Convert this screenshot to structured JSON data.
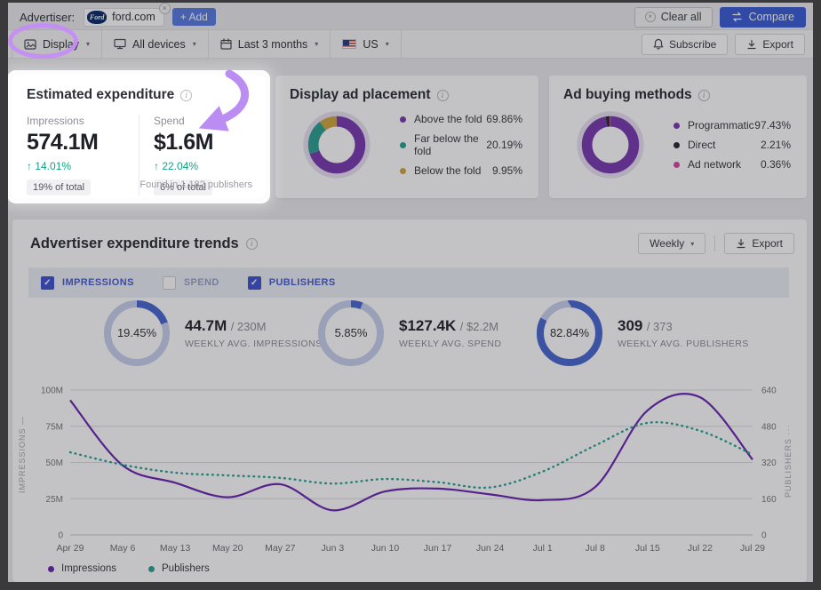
{
  "advertiser_bar": {
    "label": "Advertiser:",
    "chip": {
      "name": "ford.com",
      "logo_text": "Ford"
    },
    "add_button": "+ Add",
    "clear_all": "Clear all",
    "compare": "Compare"
  },
  "filter_bar": {
    "filters": [
      {
        "icon": "display-icon",
        "label": "Display"
      },
      {
        "icon": "devices-icon",
        "label": "All devices"
      },
      {
        "icon": "calendar-icon",
        "label": "Last 3 months"
      },
      {
        "icon": "us-flag-icon",
        "label": "US"
      }
    ],
    "subscribe": "Subscribe",
    "export": "Export"
  },
  "cards": {
    "expenditure": {
      "title": "Estimated expenditure",
      "metrics": [
        {
          "label": "Impressions",
          "value": "574.1M",
          "change": "↑ 14.01%",
          "share": "19% of total"
        },
        {
          "label": "Spend",
          "value": "$1.6M",
          "change": "↑ 22.04%",
          "share": "6% of total"
        }
      ],
      "footnote": "Found in 1,182 publishers"
    }
  },
  "trends": {
    "title": "Advertiser expenditure trends",
    "frequency": "Weekly",
    "export_label": "Export",
    "toggles": [
      {
        "label": "IMPRESSIONS",
        "checked": true
      },
      {
        "label": "SPEND",
        "checked": false
      },
      {
        "label": "PUBLISHERS",
        "checked": true
      }
    ],
    "gauges": [
      {
        "percent": "19.45%",
        "value": 19.45,
        "main": "44.7M",
        "total": "/ 230M",
        "caption": "WEEKLY AVG. IMPRESSIONS"
      },
      {
        "percent": "5.85%",
        "value": 5.85,
        "main": "$127.4K",
        "total": "/ $2.2M",
        "caption": "WEEKLY AVG. SPEND"
      },
      {
        "percent": "82.84%",
        "value": 82.84,
        "main": "309",
        "total": "/ 373",
        "caption": "WEEKLY AVG. PUBLISHERS"
      }
    ]
  },
  "colors": {
    "accent_blue": "#3d5ed6",
    "gauge_track": "#c7d0ec",
    "gauge_fill": "#4b69d2",
    "green_up": "#12a183",
    "annotation_purple": "#bb8df2"
  },
  "chart_data": [
    {
      "id": "display_ad_placement",
      "type": "pie",
      "title": "Display ad placement",
      "segments": [
        {
          "label": "Above the fold",
          "value": 69.86,
          "pct": "69.86%",
          "color": "#7a3cb0"
        },
        {
          "label": "Far below the fold",
          "value": 20.19,
          "pct": "20.19%",
          "color": "#2fa193"
        },
        {
          "label": "Below the fold",
          "value": 9.95,
          "pct": "9.95%",
          "color": "#d2a73f"
        }
      ]
    },
    {
      "id": "ad_buying_methods",
      "type": "pie",
      "title": "Ad buying methods",
      "segments": [
        {
          "label": "Programmatic",
          "value": 97.43,
          "pct": "97.43%",
          "color": "#7a3cb0"
        },
        {
          "label": "Direct",
          "value": 2.21,
          "pct": "2.21%",
          "color": "#2b2b33"
        },
        {
          "label": "Ad network",
          "value": 0.36,
          "pct": "0.36%",
          "color": "#d0509b"
        }
      ]
    },
    {
      "id": "advertiser_expenditure_trend",
      "type": "line",
      "x": [
        "Apr 29",
        "May 6",
        "May 13",
        "May 20",
        "May 27",
        "Jun 3",
        "Jun 10",
        "Jun 17",
        "Jun 24",
        "Jul 1",
        "Jul 8",
        "Jul 15",
        "Jul 22",
        "Jul 29"
      ],
      "left_axis": {
        "label": "IMPRESSIONS",
        "ticks": [
          "0",
          "25M",
          "50M",
          "75M",
          "100M"
        ],
        "max": 100
      },
      "right_axis": {
        "label": "PUBLISHERS",
        "ticks": [
          "0",
          "160",
          "320",
          "480",
          "640"
        ],
        "max": 640
      },
      "series": [
        {
          "name": "Impressions",
          "axis": "left",
          "style": "solid",
          "color": "#6d28b5",
          "values": [
            93,
            48,
            36,
            26,
            35,
            17,
            30,
            32,
            28,
            24,
            33,
            86,
            95,
            52
          ]
        },
        {
          "name": "Publishers",
          "axis": "right",
          "style": "dotted",
          "color": "#2da596",
          "values": [
            365,
            310,
            275,
            263,
            252,
            227,
            247,
            233,
            210,
            280,
            395,
            495,
            460,
            355
          ]
        }
      ],
      "grid": true,
      "legend_position": "bottom-left"
    }
  ]
}
